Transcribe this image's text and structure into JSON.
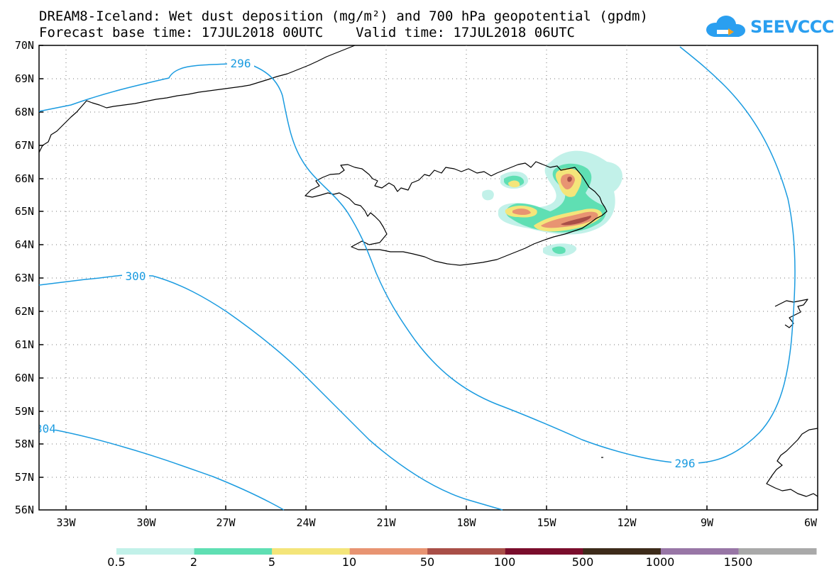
{
  "title": {
    "line1": "DREAM8-Iceland: Wet dust deposition (mg/m²) and 700 hPa geopotential (gpdm)",
    "line2": "Forecast base time: 17JUL2018 00UTC    Valid time: 17JUL2018 06UTC"
  },
  "logo": {
    "text": "SEEVCCC",
    "icon": "cloud-icon"
  },
  "map": {
    "lat_labels": [
      "70N",
      "69N",
      "68N",
      "67N",
      "66N",
      "65N",
      "64N",
      "63N",
      "62N",
      "61N",
      "60N",
      "59N",
      "58N",
      "57N",
      "56N"
    ],
    "lon_labels": [
      "33W",
      "30W",
      "27W",
      "24W",
      "21W",
      "18W",
      "15W",
      "12W",
      "9W",
      "6W"
    ],
    "contour_labels": [
      "296",
      "300",
      "304",
      "296"
    ],
    "contour_color": "#1a9be0",
    "grid": "dotted"
  },
  "legend": {
    "labels": [
      "0.5",
      "2",
      "5",
      "10",
      "50",
      "100",
      "500",
      "1000",
      "1500"
    ],
    "colors": [
      "#c2f1e9",
      "#5fdfb3",
      "#f4e57a",
      "#e89472",
      "#a94f48",
      "#7a0d2c",
      "#3d2b1a",
      "#9876a6",
      "#a9a9a9"
    ]
  }
}
